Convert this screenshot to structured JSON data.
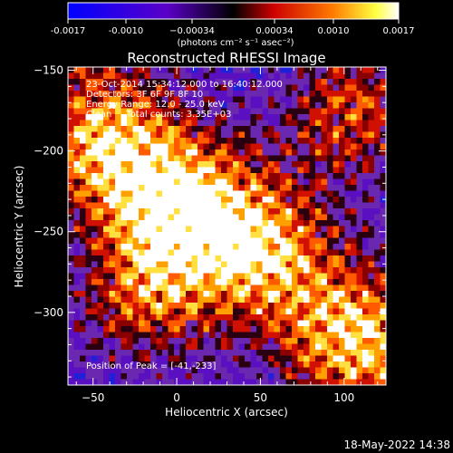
{
  "colorbar": {
    "ticks": [
      "-0.0017",
      "-0.0010",
      "−0.00034",
      "0.00034",
      "0.0010",
      "0.0017"
    ],
    "unit_label": "(photons cm⁻² s⁻¹ asec⁻²)"
  },
  "chart_data": {
    "type": "heatmap",
    "title": "Reconstructed RHESSI Image",
    "xlabel": "Heliocentric X (arcsec)",
    "ylabel": "Heliocentric Y (arcsec)",
    "xlim": [
      -65,
      125
    ],
    "ylim": [
      -345,
      -148
    ],
    "xticks": [
      "-50",
      "0",
      "50",
      "100"
    ],
    "yticks": [
      "-150",
      "-200",
      "-250",
      "-300"
    ],
    "annotations": [
      "23-Oct-2014 15:34:12.000 to 16:40:12.000",
      "Detectors: 3F 6F 9F 8F 10",
      "Energy Range: 12.0 - 25.0 keV",
      "Clean     Total counts: 3.35E+03"
    ],
    "peak_label": "Position of Peak = [-41,-233]",
    "peak": [
      -41,
      -233
    ],
    "bright_regions": [
      {
        "x": 105,
        "y": -175
      },
      {
        "x": -45,
        "y": -200
      },
      {
        "x": 0,
        "y": -235
      },
      {
        "x": 50,
        "y": -260
      },
      {
        "x": -20,
        "y": -290
      },
      {
        "x": 110,
        "y": -315
      }
    ],
    "grid": false,
    "colormap": [
      "#0000ff",
      "#5a00c8",
      "#6e22b4",
      "#000000",
      "#cc0000",
      "#ff6a00",
      "#ffff00",
      "#ffffff"
    ]
  },
  "footer": {
    "timestamp": "18-May-2022 14:38"
  }
}
